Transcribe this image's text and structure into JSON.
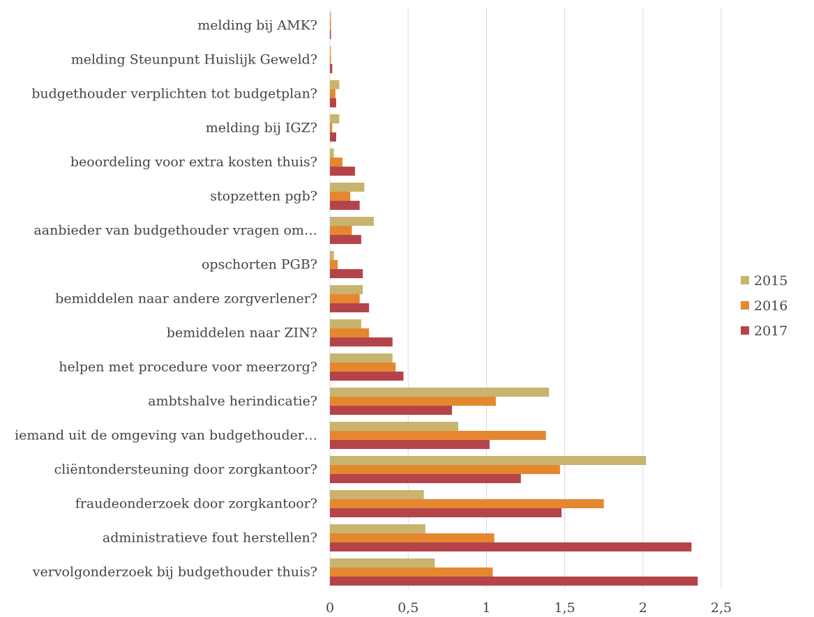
{
  "chart_data": {
    "type": "bar",
    "orientation": "horizontal",
    "categories": [
      "melding bij AMK?",
      "melding Steunpunt Huislijk Geweld?",
      "budgethouder verplichten tot budgetplan?",
      "melding bij IGZ?",
      "beoordeling voor extra kosten thuis?",
      "stopzetten pgb?",
      "aanbieder van budgethouder vragen om…",
      "opschorten PGB?",
      "bemiddelen naar andere zorgverlener?",
      "bemiddelen naar ZIN?",
      "helpen met procedure voor meerzorg?",
      "ambtshalve herindicatie?",
      "iemand uit de omgeving van budgethouder…",
      "cliëntondersteuning door zorgkantoor?",
      "fraudeonderzoek door zorgkantoor?",
      "administratieve fout herstellen?",
      "vervolgonderzoek bij budgethouder thuis?"
    ],
    "series": [
      {
        "name": "2015",
        "color": "#c8b46e",
        "values": [
          0.005,
          0.005,
          0.06,
          0.06,
          0.025,
          0.22,
          0.28,
          0.025,
          0.21,
          0.2,
          0.4,
          1.4,
          0.82,
          2.02,
          0.6,
          0.61,
          0.67
        ]
      },
      {
        "name": "2016",
        "color": "#e5872f",
        "values": [
          0.005,
          0.005,
          0.035,
          0.015,
          0.08,
          0.13,
          0.14,
          0.05,
          0.19,
          0.25,
          0.42,
          1.06,
          1.38,
          1.47,
          1.75,
          1.05,
          1.04
        ]
      },
      {
        "name": "2017",
        "color": "#b5444a",
        "values": [
          0.005,
          0.015,
          0.04,
          0.04,
          0.16,
          0.19,
          0.2,
          0.21,
          0.25,
          0.4,
          0.47,
          0.78,
          1.02,
          1.22,
          1.48,
          2.31,
          2.35
        ]
      }
    ],
    "xlim": [
      0,
      2.5
    ],
    "xticks": [
      "0",
      "0,5",
      "1",
      "1,5",
      "2",
      "2,5"
    ],
    "grid": true,
    "legend_position": "right"
  }
}
